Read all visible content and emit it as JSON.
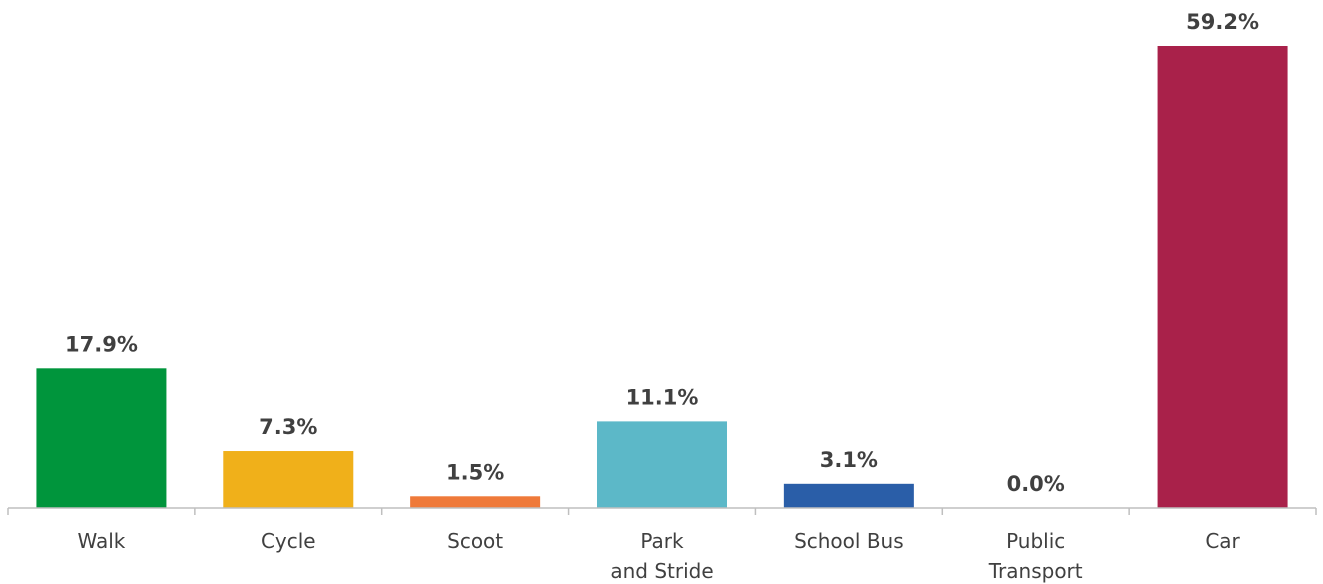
{
  "chart_data": {
    "type": "bar",
    "categories": [
      [
        "Walk"
      ],
      [
        "Cycle"
      ],
      [
        "Scoot"
      ],
      [
        "Park",
        "and Stride"
      ],
      [
        "School Bus"
      ],
      [
        "Public",
        "Transport"
      ],
      [
        "Car"
      ]
    ],
    "values": [
      17.9,
      7.3,
      1.5,
      11.1,
      3.1,
      0.0,
      59.2
    ],
    "value_labels": [
      "17.9%",
      "7.3%",
      "1.5%",
      "11.1%",
      "3.1%",
      "0.0%",
      "59.2%"
    ],
    "colors": [
      "#00953c",
      "#f0b01a",
      "#ef7a3a",
      "#5cb8c8",
      "#2a5ea8",
      "#ffffff",
      "#a9214a"
    ],
    "ylim": [
      0,
      59.2
    ],
    "grid": false,
    "legend": "none",
    "title": "",
    "xlabel": "",
    "ylabel": ""
  }
}
